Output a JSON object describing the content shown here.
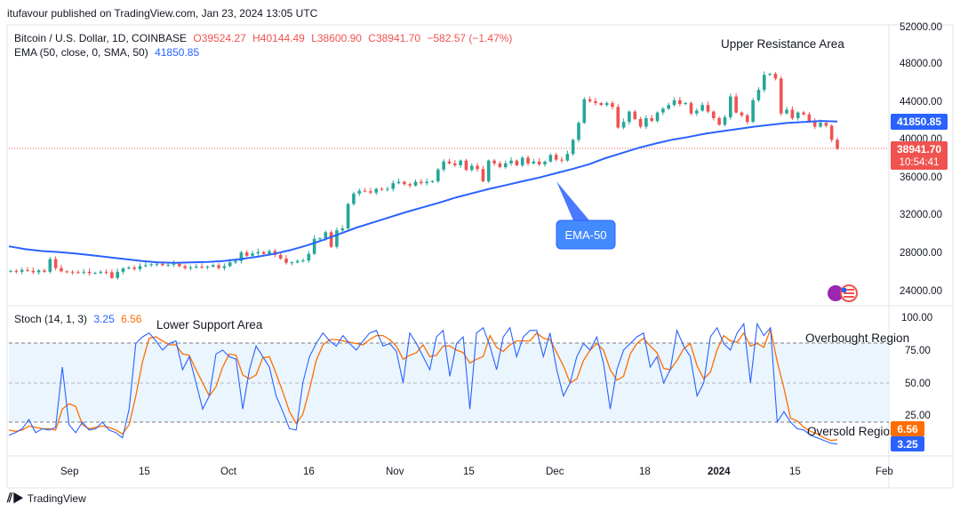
{
  "header": {
    "published": "itufavour published on TradingView.com, Jan 23, 2024 13:05 UTC"
  },
  "legend": {
    "symbol": "Bitcoin / U.S. Dollar, 1D, COINBASE",
    "open": "O39524.27",
    "high": "H40144.49",
    "low": "L38600.90",
    "close": "C38941.70",
    "change": "−582.57 (−1.47%)",
    "ema_label": "EMA (50, close, 0, SMA, 50)",
    "ema_value": "41850.85",
    "stoch_label": "Stoch (14, 1, 3)",
    "stoch_k": "3.25",
    "stoch_d": "6.56"
  },
  "annotations": {
    "upper": "Upper Resistance Area",
    "lower": "Lower Support Area",
    "overbought": "Overbought Region",
    "oversold": "Oversold Region",
    "ema_callout": "EMA-50"
  },
  "price_axis": [
    "52000.00",
    "48000.00",
    "44000.00",
    "40000.00",
    "36000.00",
    "32000.00",
    "28000.00",
    "24000.00"
  ],
  "stoch_axis": [
    "100.00",
    "75.00",
    "50.00",
    "25.00"
  ],
  "time_axis": [
    "Sep",
    "15",
    "Oct",
    "16",
    "Nov",
    "15",
    "Dec",
    "18",
    "2024",
    "15",
    "Feb"
  ],
  "badges": {
    "ema_price": "41850.85",
    "last_price": "38941.70",
    "countdown": "10:54:41",
    "stoch_d": "6.56",
    "stoch_k": "3.25"
  },
  "footer": {
    "brand": "TradingView"
  },
  "colors": {
    "up": "#26a69a",
    "down": "#ef5350",
    "ema": "#2962ff",
    "stoch_k": "#2962ff",
    "stoch_d": "#ff6d00",
    "band": "#e3f2fd"
  },
  "chart_data": [
    {
      "type": "candlestick",
      "title": "Bitcoin / U.S. Dollar, 1D, COINBASE",
      "ylim": [
        22500,
        52500
      ],
      "y_ticks": [
        52000,
        48000,
        44000,
        40000,
        36000,
        32000,
        28000,
        24000
      ],
      "close_series": [
        26000,
        25900,
        26100,
        26000,
        25850,
        26050,
        25900,
        27250,
        26300,
        25950,
        25900,
        25850,
        25800,
        25900,
        25750,
        25800,
        25900,
        25850,
        25250,
        25900,
        26250,
        26350,
        26200,
        26500,
        26600,
        26700,
        26750,
        26600,
        26650,
        26750,
        26500,
        26300,
        26350,
        26450,
        26400,
        26450,
        26600,
        26300,
        26500,
        26900,
        27050,
        27950,
        27600,
        27850,
        28000,
        27800,
        28100,
        27700,
        27300,
        26850,
        26900,
        27050,
        27100,
        27800,
        29400,
        29450,
        30100,
        28550,
        30300,
        30500,
        33100,
        34200,
        34500,
        34450,
        34300,
        34700,
        34600,
        34700,
        35300,
        35450,
        35200,
        35050,
        35450,
        35300,
        35450,
        35500,
        36750,
        37600,
        37400,
        37200,
        37700,
        36700,
        37150,
        36800,
        35500,
        37700,
        37400,
        37000,
        37400,
        37700,
        37200,
        38000,
        37400,
        37600,
        37300,
        37600,
        38300,
        37800,
        37700,
        38400,
        39900,
        41700,
        44200,
        44000,
        43800,
        43600,
        43800,
        43400,
        41200,
        41800,
        42900,
        42100,
        41300,
        42200,
        41900,
        42800,
        43200,
        43600,
        44100,
        43700,
        43800,
        42700,
        43000,
        43600,
        42900,
        42200,
        41500,
        42300,
        44500,
        42800,
        42500,
        41800,
        44100,
        45200,
        46800,
        46900,
        46400,
        42700,
        43100,
        42200,
        42800,
        42600,
        41900,
        41300,
        41700,
        41400,
        39900,
        38942
      ],
      "ema50_series": [
        28600,
        28300,
        28100,
        28000,
        27850,
        27650,
        27450,
        27250,
        27050,
        26900,
        26850,
        26900,
        26950,
        27050,
        27250,
        27500,
        27800,
        28200,
        28700,
        29300,
        29950,
        30600,
        31150,
        31700,
        32250,
        32750,
        33250,
        33800,
        34250,
        34700,
        35100,
        35500,
        35900,
        36350,
        36800,
        37300,
        37950,
        38500,
        39050,
        39500,
        39900,
        40200,
        40550,
        40800,
        41050,
        41300,
        41500,
        41700,
        41800,
        41900,
        41850
      ],
      "ema50_x_labels": [
        "Sep",
        "Sep 15",
        "Oct",
        "Oct 16",
        "Nov",
        "Nov 15",
        "Dec",
        "Dec 18",
        "2024",
        "Jan 15"
      ],
      "last": 38941.7,
      "ema_last": 41850.85
    },
    {
      "type": "line",
      "title": "Stoch (14, 1, 3)",
      "ylim": [
        -16,
        100
      ],
      "y_ticks": [
        100,
        75,
        50,
        25
      ],
      "levels": [
        80,
        50,
        20
      ],
      "series": [
        {
          "name": "%K",
          "values": [
            10,
            12,
            15,
            22,
            12,
            15,
            14,
            16,
            62,
            18,
            12,
            20,
            14,
            15,
            20,
            14,
            12,
            8,
            30,
            80,
            85,
            88,
            82,
            75,
            80,
            82,
            60,
            70,
            50,
            30,
            40,
            72,
            75,
            70,
            68,
            30,
            60,
            78,
            70,
            62,
            40,
            28,
            15,
            14,
            50,
            70,
            80,
            88,
            82,
            78,
            86,
            80,
            75,
            82,
            88,
            90,
            78,
            80,
            74,
            50,
            88,
            80,
            70,
            60,
            85,
            90,
            55,
            80,
            85,
            30,
            88,
            92,
            78,
            60,
            85,
            92,
            70,
            85,
            90,
            90,
            70,
            88,
            60,
            40,
            50,
            70,
            80,
            75,
            85,
            65,
            30,
            60,
            75,
            80,
            85,
            88,
            62,
            70,
            50,
            60,
            90,
            78,
            70,
            40,
            50,
            85,
            92,
            80,
            75,
            88,
            95,
            50,
            95,
            86,
            92,
            20,
            28,
            20,
            15,
            14,
            10,
            8,
            6,
            4,
            3.25
          ]
        },
        {
          "name": "%D",
          "values": [
            14,
            13,
            14,
            17,
            16,
            15,
            15,
            14,
            30,
            34,
            32,
            18,
            15,
            16,
            17,
            16,
            14,
            11,
            18,
            40,
            66,
            84,
            85,
            82,
            79,
            79,
            72,
            71,
            60,
            50,
            40,
            47,
            62,
            72,
            71,
            56,
            53,
            56,
            69,
            70,
            57,
            43,
            28,
            19,
            26,
            45,
            67,
            79,
            83,
            83,
            82,
            81,
            80,
            79,
            83,
            86,
            86,
            83,
            78,
            68,
            71,
            73,
            79,
            70,
            71,
            78,
            78,
            75,
            73,
            65,
            68,
            70,
            86,
            77,
            74,
            79,
            82,
            82,
            82,
            88,
            84,
            83,
            73,
            63,
            50,
            53,
            67,
            75,
            80,
            75,
            60,
            52,
            55,
            72,
            80,
            84,
            78,
            73,
            61,
            60,
            67,
            76,
            80,
            63,
            53,
            58,
            75,
            86,
            82,
            81,
            88,
            78,
            80,
            77,
            91,
            66,
            46,
            23,
            21,
            16,
            13,
            11,
            8,
            6,
            6.56
          ]
        }
      ],
      "annotations": [
        "Overbought Region",
        "Oversold Region",
        "Lower Support Area"
      ]
    }
  ]
}
